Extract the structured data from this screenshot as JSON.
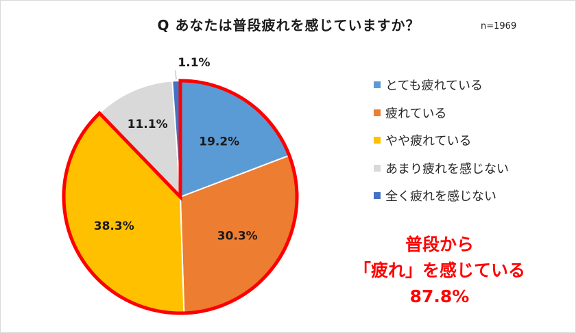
{
  "title": "Q あなたは普段疲れを感じていますか？",
  "sample_size": "n=1969",
  "callout": {
    "line1": "普段から",
    "line2": "「疲れ」を感じている",
    "line3": "87.8%"
  },
  "colors": {
    "highlight_border": "#ff0000",
    "callout_text": "#ff0000",
    "label_text": "#1a1a1a"
  },
  "chart_data": {
    "type": "pie",
    "start_angle_deg": 0,
    "direction": "clockwise",
    "legend_position": "right",
    "slices": [
      {
        "name": "とても疲れている",
        "value": 19.2,
        "label": "19.2%",
        "color": "#5b9bd5"
      },
      {
        "name": "疲れている",
        "value": 30.3,
        "label": "30.3%",
        "color": "#ed7d31"
      },
      {
        "name": "やや疲れている",
        "value": 38.3,
        "label": "38.3%",
        "color": "#ffc000"
      },
      {
        "name": "あまり疲れを感じない",
        "value": 11.1,
        "label": "11.1%",
        "color": "#d9d9d9"
      },
      {
        "name": "全く疲れを感じない",
        "value": 1.1,
        "label": "1.1%",
        "color": "#4472c4"
      }
    ],
    "highlighted_group": {
      "slices": [
        "とても疲れている",
        "疲れている",
        "やや疲れている"
      ],
      "total": 87.8
    }
  }
}
